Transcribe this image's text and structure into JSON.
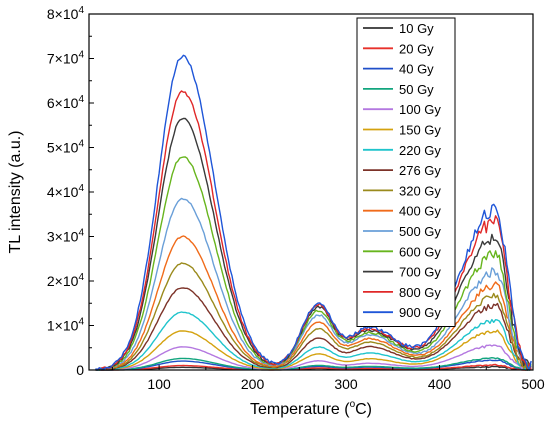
{
  "chart_data": {
    "type": "line",
    "xlabel": "Temperature (",
    "xlabel_sup": "o",
    "xlabel_suffix": "C)",
    "ylabel": "TL intensity (a.u.)",
    "xlim": [
      25,
      500
    ],
    "ylim": [
      0,
      80000
    ],
    "x_ticks": [
      100,
      200,
      300,
      400,
      500
    ],
    "x_tick_labels": [
      "100",
      "200",
      "300",
      "400",
      "500"
    ],
    "y_ticks": [
      0,
      10000,
      20000,
      30000,
      40000,
      50000,
      60000,
      70000,
      80000
    ],
    "y_tick_labels": [
      {
        "base": "0",
        "sup": ""
      },
      {
        "base": "1×10",
        "sup": "4"
      },
      {
        "base": "2×10",
        "sup": "4"
      },
      {
        "base": "3×10",
        "sup": "4"
      },
      {
        "base": "4×10",
        "sup": "4"
      },
      {
        "base": "5×10",
        "sup": "4"
      },
      {
        "base": "6×10",
        "sup": "4"
      },
      {
        "base": "7×10",
        "sup": "4"
      },
      {
        "base": "8×10",
        "sup": "4"
      }
    ],
    "grid": false,
    "legend_position": "top-right",
    "peak_temperatures": [
      125,
      270,
      325,
      460
    ],
    "series": [
      {
        "name": "10 Gy",
        "color": "#333333",
        "peaks": [
          600,
          300,
          250,
          700
        ]
      },
      {
        "name": "20 Gy",
        "color": "#e8312a",
        "peaks": [
          1000,
          450,
          350,
          1100
        ]
      },
      {
        "name": "40 Gy",
        "color": "#1f4fc9",
        "peaks": [
          2000,
          800,
          650,
          2200
        ]
      },
      {
        "name": "50 Gy",
        "color": "#12a57e",
        "peaks": [
          2600,
          1000,
          800,
          2700
        ]
      },
      {
        "name": "100 Gy",
        "color": "#b478e0",
        "peaks": [
          5200,
          2000,
          1500,
          5500
        ]
      },
      {
        "name": "150 Gy",
        "color": "#d4a20f",
        "peaks": [
          8800,
          3500,
          2500,
          8800
        ]
      },
      {
        "name": "220 Gy",
        "color": "#1fc4cc",
        "peaks": [
          13000,
          5000,
          3800,
          11000
        ]
      },
      {
        "name": "276 Gy",
        "color": "#7c3228",
        "peaks": [
          18500,
          7000,
          5200,
          14500
        ]
      },
      {
        "name": "320 Gy",
        "color": "#9a8a1c",
        "peaks": [
          24000,
          9000,
          6200,
          16500
        ]
      },
      {
        "name": "400 Gy",
        "color": "#f06b1a",
        "peaks": [
          30000,
          10500,
          7000,
          19000
        ]
      },
      {
        "name": "500 Gy",
        "color": "#6a9fd8",
        "peaks": [
          38500,
          12000,
          7800,
          22000
        ]
      },
      {
        "name": "600 Gy",
        "color": "#67b51d",
        "peaks": [
          48000,
          13000,
          8300,
          26000
        ]
      },
      {
        "name": "700 Gy",
        "color": "#3a3a3a",
        "peaks": [
          56500,
          13800,
          8800,
          30000
        ]
      },
      {
        "name": "800 Gy",
        "color": "#e02828",
        "peaks": [
          62500,
          14200,
          9200,
          33500
        ]
      },
      {
        "name": "900 Gy",
        "color": "#1f56d8",
        "peaks": [
          70500,
          14500,
          9500,
          36000
        ]
      }
    ]
  }
}
